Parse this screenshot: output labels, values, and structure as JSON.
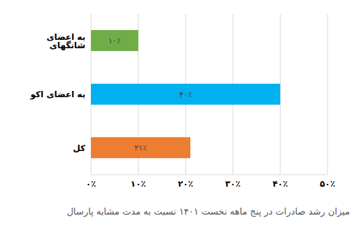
{
  "chart_data": {
    "type": "bar",
    "orientation": "horizontal",
    "title": "میزان رشد صادرات در پنج ماهه نخست ۱۴۰۱ نسبت به مدت مشابه پارسال",
    "categories": [
      "به اعضای شانگهای",
      "به اعضای اکو",
      "کل"
    ],
    "values": [
      10,
      40,
      21
    ],
    "value_labels": [
      "۱۰٪",
      "۴۰٪",
      "۲۱٪"
    ],
    "colors": [
      "#70ad47",
      "#00b0f0",
      "#ed7d31"
    ],
    "xlim": [
      0,
      50
    ],
    "xticks": [
      {
        "value": 0,
        "label": "۰٪"
      },
      {
        "value": 10,
        "label": "۱۰٪"
      },
      {
        "value": 20,
        "label": "۲۰٪"
      },
      {
        "value": 30,
        "label": "۳۰٪"
      },
      {
        "value": 40,
        "label": "۴۰٪"
      },
      {
        "value": 50,
        "label": "۵۰٪"
      }
    ],
    "grid": true,
    "data_labels": true
  }
}
